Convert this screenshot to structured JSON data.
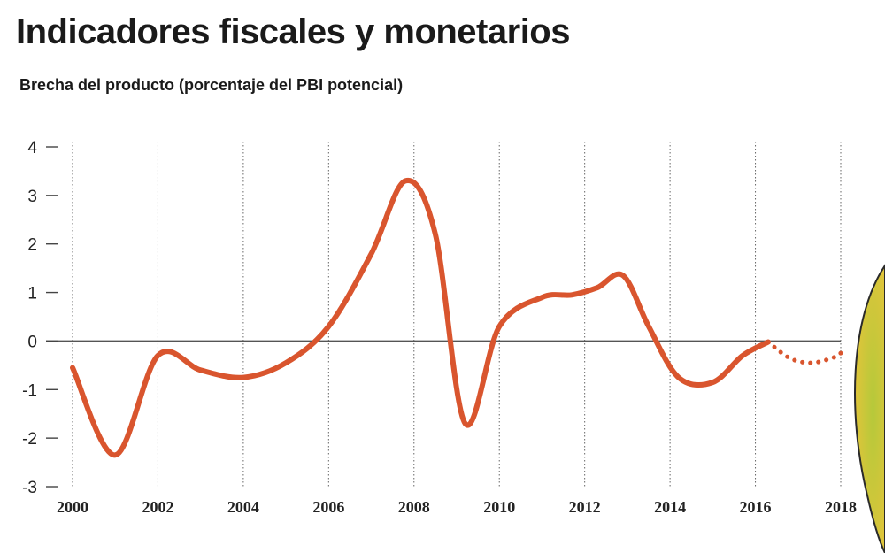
{
  "header": {
    "title": "Indicadores fiscales y monetarios",
    "subtitle": "Brecha del producto (porcentaje del PBI potencial)"
  },
  "colors": {
    "line": "#d9552e",
    "zero_line": "#555555",
    "grid": "#666666",
    "decor_green": "#b5c93a",
    "decor_yellow": "#e8c43a"
  },
  "chart_data": {
    "type": "line",
    "title": "Indicadores fiscales y monetarios",
    "subtitle": "Brecha del producto (porcentaje del PBI potencial)",
    "xlabel": "",
    "ylabel": "",
    "xlim": [
      2000,
      2018
    ],
    "ylim": [
      -3,
      4
    ],
    "x_ticks": [
      2000,
      2002,
      2004,
      2006,
      2008,
      2010,
      2012,
      2014,
      2016,
      2018
    ],
    "y_ticks": [
      -3,
      -2,
      -1,
      0,
      1,
      2,
      3,
      4
    ],
    "grid": "vertical dotted at even years",
    "legend": "none",
    "series": [
      {
        "style": "solid",
        "x": [
          2000.0,
          2001.0,
          2002.0,
          2003.0,
          2004.0,
          2005.0,
          2006.0,
          2007.0,
          2007.8,
          2008.5,
          2009.2,
          2010.0,
          2011.0,
          2011.7,
          2012.3,
          2012.9,
          2013.5,
          2014.2,
          2015.0,
          2015.7,
          2016.3
        ],
        "y": [
          -0.55,
          -2.35,
          -0.3,
          -0.6,
          -0.75,
          -0.45,
          0.3,
          1.8,
          3.3,
          2.2,
          -1.7,
          0.3,
          0.9,
          0.95,
          1.1,
          1.35,
          0.3,
          -0.75,
          -0.85,
          -0.3,
          -0.02
        ]
      },
      {
        "style": "dotted",
        "x": [
          2016.3,
          2016.8,
          2017.3,
          2017.8,
          2018.0
        ],
        "y": [
          -0.02,
          -0.35,
          -0.45,
          -0.35,
          -0.25
        ]
      }
    ]
  }
}
